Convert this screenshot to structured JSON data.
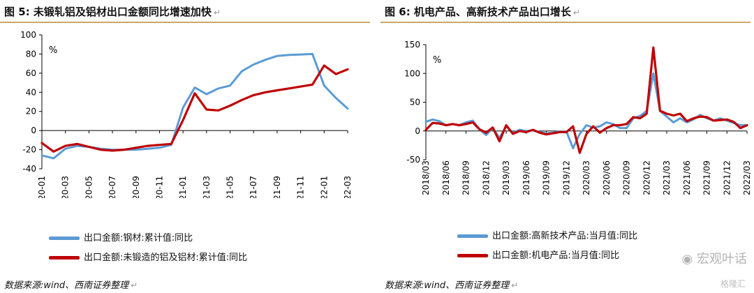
{
  "colors": {
    "blue": "#5b9bd5",
    "red": "#c00000",
    "rule": "#c9a86a"
  },
  "left": {
    "title_prefix": "图",
    "title_num": "5",
    "title_text": ":  未锻轧铝及铝材出口金额同比增速加快",
    "source": "数据来源:wind、西南证券整理",
    "unit": "%"
  },
  "right": {
    "title_prefix": "图",
    "title_num": "6",
    "title_text": ":  机电产品、高新技术产品出口增长",
    "source": "数据来源:wind、西南证券整理",
    "unit": "%"
  },
  "watermark": "宏观叶话",
  "watermark_logo": "格隆汇",
  "chart_data": [
    {
      "type": "line",
      "y_ticks": [
        100,
        80,
        60,
        40,
        20,
        0,
        -20,
        -40
      ],
      "ylim": [
        -40,
        100
      ],
      "x_tick_labels": [
        "2020-01",
        "2020-03",
        "2020-05",
        "2020-07",
        "2020-09",
        "2020-11",
        "2021-01",
        "2021-03",
        "2021-05",
        "2021-07",
        "2021-09",
        "2021-11",
        "2022-01",
        "2022-03"
      ],
      "x": [
        "2020-01",
        "2020-02",
        "2020-03",
        "2020-04",
        "2020-05",
        "2020-06",
        "2020-07",
        "2020-08",
        "2020-09",
        "2020-10",
        "2020-11",
        "2020-12",
        "2021-01",
        "2021-02",
        "2021-03",
        "2021-04",
        "2021-05",
        "2021-06",
        "2021-07",
        "2021-08",
        "2021-09",
        "2021-10",
        "2021-11",
        "2021-12",
        "2022-01",
        "2022-02",
        "2022-03"
      ],
      "grid": false,
      "legend_position": "bottom",
      "series": [
        {
          "name": "出口金额:钢材:累计值:同比",
          "color": "#5b9bd5",
          "values": [
            -26,
            -29,
            -19,
            -16,
            -17,
            -19,
            -20,
            -20,
            -20,
            -19,
            -18,
            -15,
            24,
            45,
            38,
            44,
            47,
            62,
            69,
            74,
            78,
            79,
            79.5,
            80,
            47,
            34,
            23
          ]
        },
        {
          "name": "出口金额:未锻造的铝及铝材:累计值:同比",
          "color": "#c00000",
          "values": [
            -13,
            -22,
            -16,
            -14,
            -17,
            -20,
            -21,
            -20,
            -18,
            -16,
            -15,
            -14,
            11,
            39,
            22,
            21,
            26,
            32,
            37,
            40,
            42,
            44,
            46,
            48,
            68,
            59,
            64
          ]
        }
      ]
    },
    {
      "type": "line",
      "y_ticks": [
        150,
        100,
        50,
        0,
        -50
      ],
      "ylim": [
        -50,
        150
      ],
      "x_tick_labels": [
        "2018/03",
        "2018/06",
        "2018/09",
        "2018/12",
        "2019/03",
        "2019/06",
        "2019/09",
        "2019/12",
        "2020/03",
        "2020/06",
        "2020/09",
        "2020/12",
        "2021/03",
        "2021/06",
        "2021/09",
        "2021/12",
        "2022/03"
      ],
      "x": [
        "2018/03",
        "2018/04",
        "2018/05",
        "2018/06",
        "2018/07",
        "2018/08",
        "2018/09",
        "2018/10",
        "2018/11",
        "2018/12",
        "2019/01",
        "2019/02",
        "2019/03",
        "2019/04",
        "2019/05",
        "2019/06",
        "2019/07",
        "2019/08",
        "2019/09",
        "2019/10",
        "2019/11",
        "2019/12",
        "2020/01",
        "2020/02",
        "2020/03",
        "2020/04",
        "2020/05",
        "2020/06",
        "2020/07",
        "2020/08",
        "2020/09",
        "2020/10",
        "2020/11",
        "2020/12",
        "2021/01",
        "2021/02",
        "2021/03",
        "2021/04",
        "2021/05",
        "2021/06",
        "2021/07",
        "2021/08",
        "2021/09",
        "2021/10",
        "2021/11",
        "2021/12",
        "2022/01",
        "2022/02",
        "2022/03"
      ],
      "grid": false,
      "legend_position": "bottom",
      "series": [
        {
          "name": "出口金额:高新技术产品:当月值:同比",
          "color": "#5b9bd5",
          "values": [
            16,
            20,
            17,
            10,
            12,
            10,
            15,
            18,
            3,
            -7,
            5,
            -12,
            8,
            -3,
            2,
            0,
            1,
            -2,
            -4,
            -3,
            -1,
            -1,
            -30,
            -5,
            10,
            6,
            8,
            15,
            12,
            5,
            5,
            22,
            26,
            35,
            100,
            35,
            25,
            15,
            22,
            15,
            20,
            28,
            22,
            18,
            22,
            18,
            14,
            10,
            10
          ]
        },
        {
          "name": "出口金额:机电产品:当月值:同比",
          "color": "#c00000",
          "values": [
            2,
            14,
            13,
            10,
            12,
            10,
            12,
            15,
            3,
            -3,
            6,
            -18,
            10,
            -5,
            0,
            -2,
            2,
            -3,
            -6,
            -4,
            -2,
            -2,
            8,
            -38,
            -5,
            8,
            -3,
            5,
            10,
            10,
            12,
            24,
            22,
            30,
            145,
            35,
            30,
            27,
            30,
            17,
            22,
            25,
            24,
            18,
            19,
            20,
            16,
            5,
            10
          ]
        }
      ]
    }
  ]
}
